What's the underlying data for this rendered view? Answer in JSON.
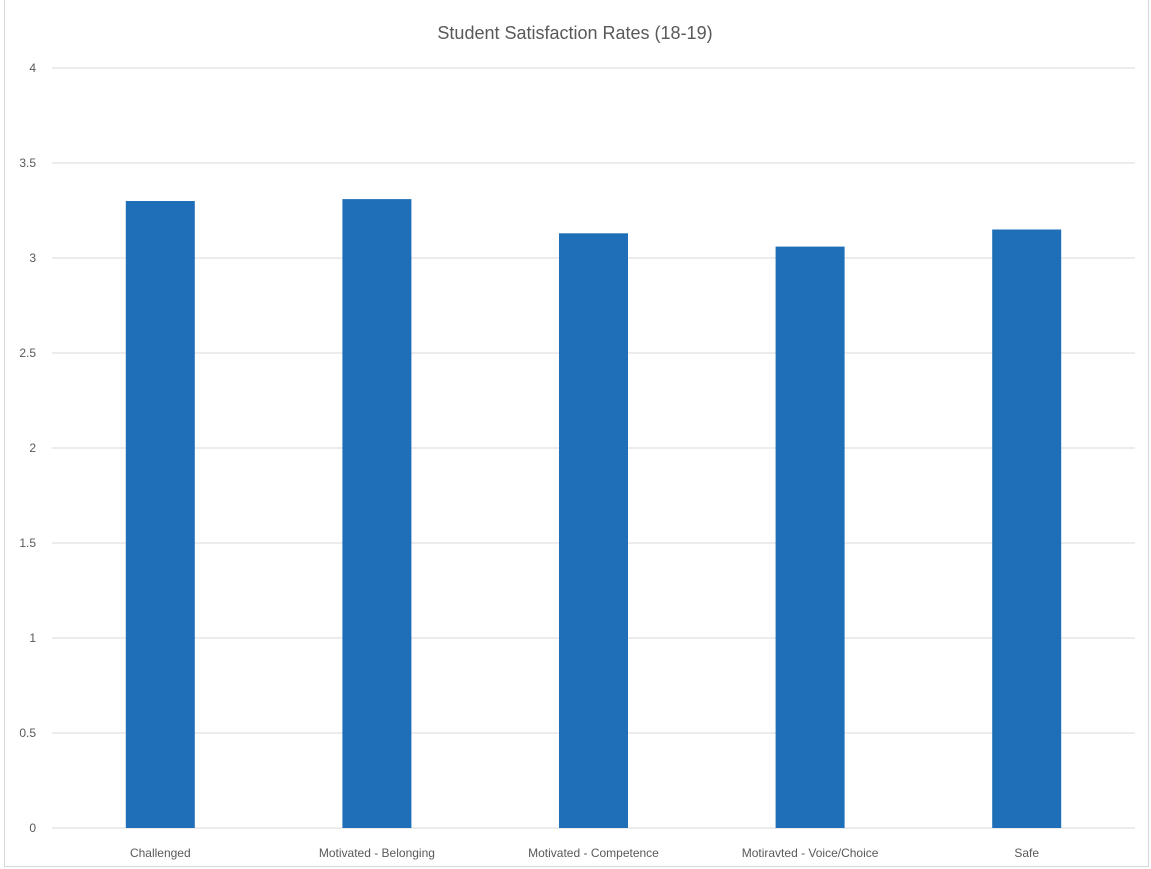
{
  "chart_data": {
    "type": "bar",
    "title": "Student Satisfaction Rates (18-19)",
    "xlabel": "",
    "ylabel": "",
    "categories": [
      "Challenged",
      "Motivated - Belonging",
      "Motivated - Competence",
      "Motiravted - Voice/Choice",
      "Safe"
    ],
    "values": [
      3.3,
      3.31,
      3.13,
      3.06,
      3.15
    ],
    "ylim": [
      0,
      4
    ],
    "yticks": [
      0,
      0.5,
      1,
      1.5,
      2,
      2.5,
      3,
      3.5,
      4
    ],
    "ytick_labels": [
      "0",
      "0.5",
      "1",
      "1.5",
      "2",
      "2.5",
      "3",
      "3.5",
      "4"
    ],
    "grid": true,
    "legend": "none",
    "bar_color": "#1f6fb8",
    "grid_color": "#d9d9d9",
    "text_color": "#595959"
  }
}
